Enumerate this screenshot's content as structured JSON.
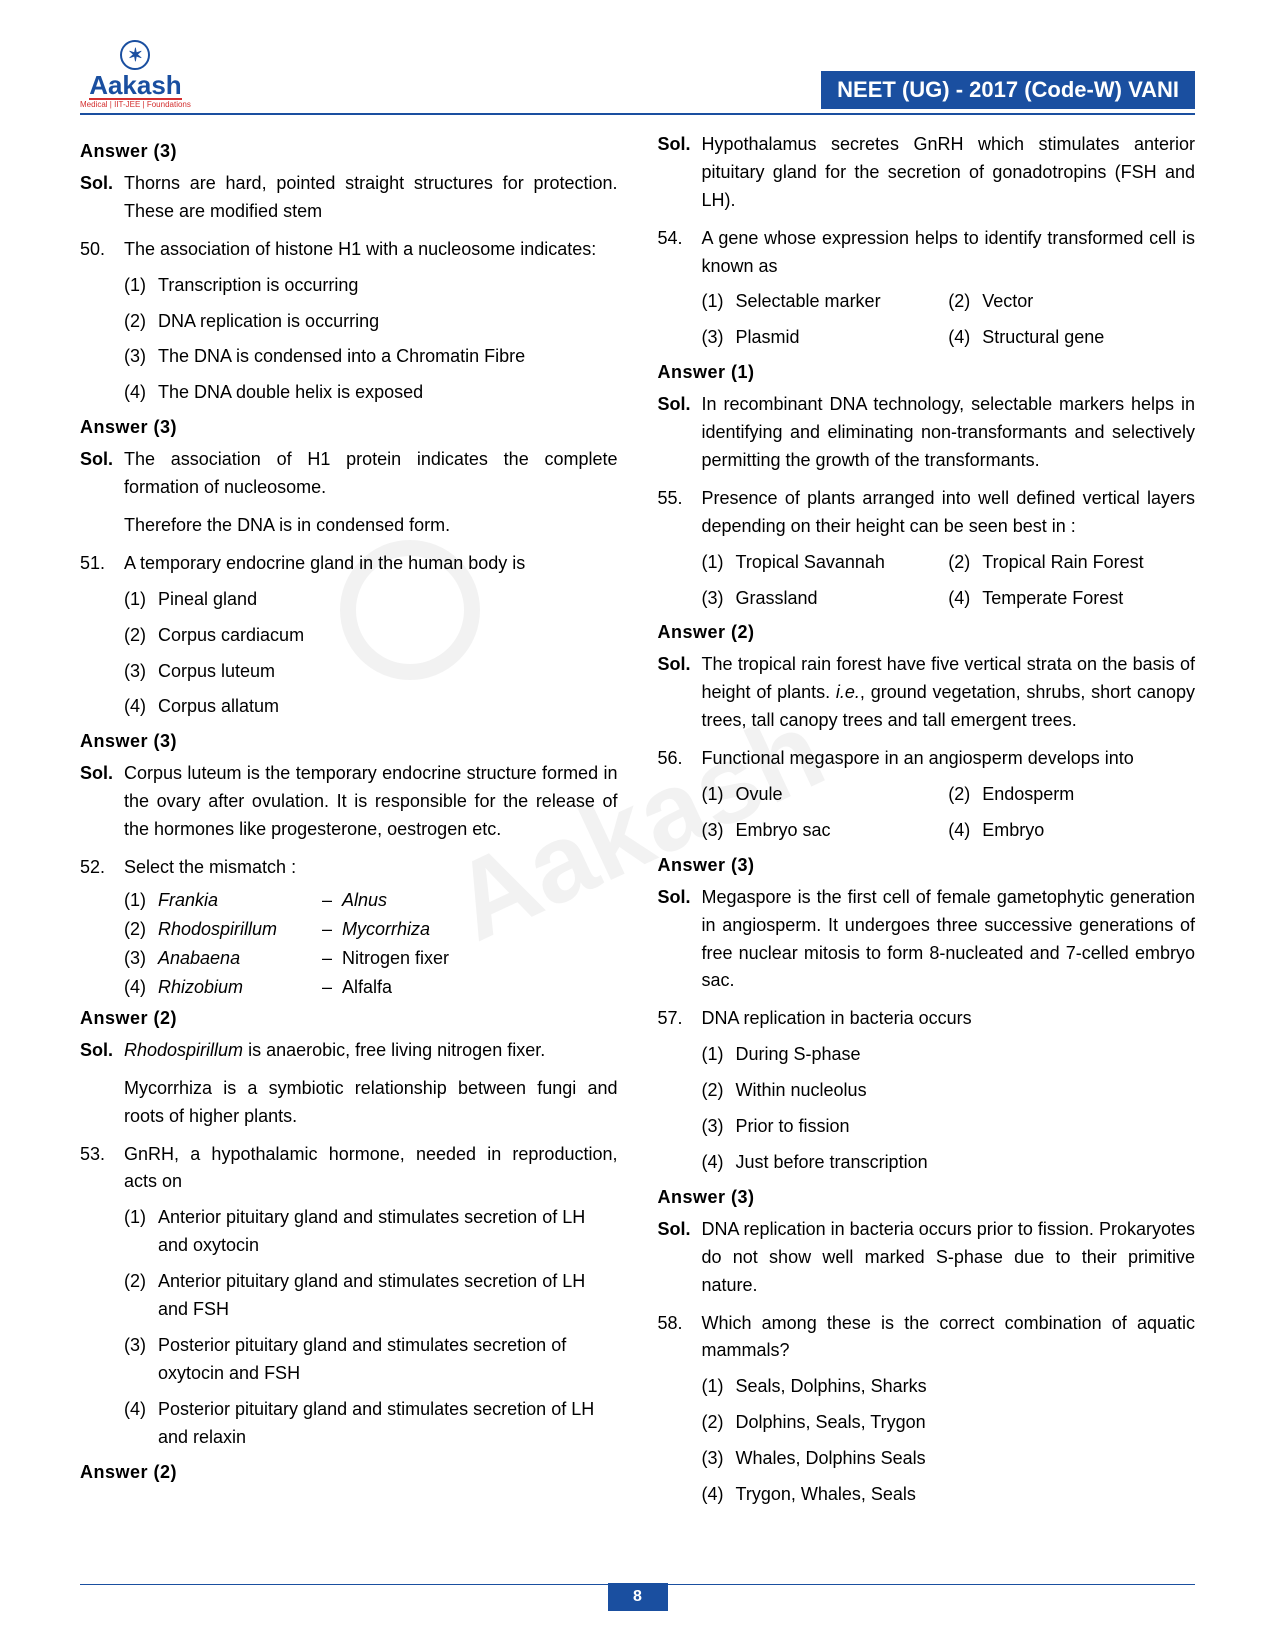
{
  "header": {
    "logo_name": "Aakash",
    "logo_sub": "Medical | IIT-JEE | Foundations",
    "title": "NEET (UG) - 2017 (Code-W) VANI"
  },
  "page_number": "8",
  "left": {
    "ans49": "Answer (3)",
    "sol49": "Thorns are hard, pointed straight structures for protection. These are modified stem",
    "q50": {
      "num": "50.",
      "text": "The association of histone H1 with a nucleosome indicates:",
      "o1": "Transcription is occurring",
      "o2": "DNA replication is occurring",
      "o3": "The DNA is condensed into a Chromatin Fibre",
      "o4": "The DNA double helix is exposed"
    },
    "ans50": "Answer (3)",
    "sol50a": "The association of H1 protein indicates the complete formation of nucleosome.",
    "sol50b": "Therefore the DNA is in condensed form.",
    "q51": {
      "num": "51.",
      "text": "A temporary endocrine gland in the human body is",
      "o1": "Pineal gland",
      "o2": "Corpus cardiacum",
      "o3": "Corpus luteum",
      "o4": "Corpus allatum"
    },
    "ans51": "Answer (3)",
    "sol51": "Corpus luteum is the temporary endocrine structure formed in the ovary after ovulation. It is responsible for the release of the hormones like progesterone, oestrogen etc.",
    "q52": {
      "num": "52.",
      "text": "Select the mismatch :",
      "m1a": "Frankia",
      "m1b": "Alnus",
      "m2a": "Rhodospirillum",
      "m2b": "Mycorrhiza",
      "m3a": "Anabaena",
      "m3b": "Nitrogen fixer",
      "m4a": "Rhizobium",
      "m4b": "Alfalfa"
    },
    "ans52": "Answer (2)",
    "sol52a_i": "Rhodospirillum",
    "sol52a_r": " is anaerobic, free living nitrogen fixer.",
    "sol52b": "Mycorrhiza is a symbiotic relationship between fungi and roots of higher plants.",
    "q53": {
      "num": "53.",
      "text": "GnRH, a hypothalamic hormone, needed in reproduction, acts on",
      "o1": "Anterior pituitary gland and stimulates secretion of LH and oxytocin",
      "o2": "Anterior pituitary gland and stimulates secretion of LH and FSH",
      "o3": "Posterior pituitary gland and stimulates secretion of oxytocin and FSH",
      "o4": "Posterior pituitary gland and stimulates secretion of LH and relaxin"
    },
    "ans53": "Answer (2)"
  },
  "right": {
    "sol53": "Hypothalamus secretes GnRH which stimulates anterior pituitary gland for the secretion of gonadotropins (FSH and LH).",
    "q54": {
      "num": "54.",
      "text": "A gene whose expression helps to identify transformed cell is known as",
      "o1": "Selectable marker",
      "o2": "Vector",
      "o3": "Plasmid",
      "o4": "Structural gene"
    },
    "ans54": "Answer (1)",
    "sol54": "In recombinant DNA technology, selectable markers helps in identifying and eliminating non-transformants and selectively permitting the growth of the transformants.",
    "q55": {
      "num": "55.",
      "text": "Presence of plants arranged into well defined vertical layers depending on their height can be seen best in :",
      "o1": "Tropical Savannah",
      "o2": "Tropical Rain Forest",
      "o3": "Grassland",
      "o4": "Temperate Forest"
    },
    "ans55": "Answer (2)",
    "sol55_a": "The tropical rain forest have five vertical strata on the basis of height of plants. ",
    "sol55_i": "i.e.",
    "sol55_b": ", ground vegetation, shrubs, short canopy trees, tall canopy trees and tall emergent trees.",
    "q56": {
      "num": "56.",
      "text": "Functional megaspore in an angiosperm develops into",
      "o1": "Ovule",
      "o2": "Endosperm",
      "o3": "Embryo sac",
      "o4": "Embryo"
    },
    "ans56": "Answer (3)",
    "sol56": "Megaspore is the first cell of female gametophytic generation in angiosperm. It undergoes three successive generations of free nuclear mitosis to form 8-nucleated and 7-celled embryo sac.",
    "q57": {
      "num": "57.",
      "text": "DNA replication in bacteria occurs",
      "o1": "During S-phase",
      "o2": "Within nucleolus",
      "o3": "Prior to fission",
      "o4": "Just before transcription"
    },
    "ans57": "Answer (3)",
    "sol57": "DNA replication in bacteria occurs prior to fission. Prokaryotes do not show well marked S-phase due to their primitive nature.",
    "q58": {
      "num": "58.",
      "text": "Which among these is the correct combination of aquatic mammals?",
      "o1": "Seals, Dolphins, Sharks",
      "o2": "Dolphins, Seals, Trygon",
      "o3": "Whales, Dolphins Seals",
      "o4": "Trygon, Whales, Seals"
    }
  }
}
